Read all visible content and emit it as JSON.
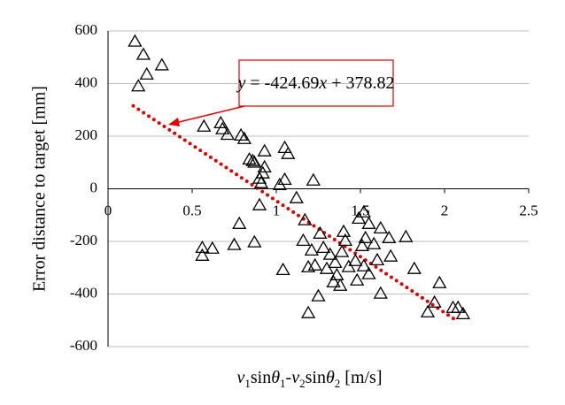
{
  "chart_data": {
    "type": "scatter",
    "y_label": "Error distance to target [mm]",
    "x_label": [
      {
        "text": "v",
        "style": "italic"
      },
      {
        "text": "1",
        "style": "sub"
      },
      {
        "text": "sin",
        "style": "normal"
      },
      {
        "text": "θ",
        "style": "italic"
      },
      {
        "text": "1",
        "style": "sub"
      },
      {
        "text": "-",
        "style": "normal"
      },
      {
        "text": "v",
        "style": "italic"
      },
      {
        "text": "2",
        "style": "sub"
      },
      {
        "text": "sin",
        "style": "normal"
      },
      {
        "text": "θ",
        "style": "italic"
      },
      {
        "text": "2",
        "style": "sub"
      },
      {
        "text": " [m/s]",
        "style": "normal"
      }
    ],
    "xlim": [
      0,
      2.5
    ],
    "xticks": [
      0,
      0.5,
      1,
      1.5,
      2,
      2.5
    ],
    "ylim": [
      -600,
      600
    ],
    "yticks": [
      -600,
      -400,
      -200,
      0,
      200,
      400,
      600
    ],
    "grid": true,
    "marker": "triangle",
    "color": "#000000",
    "x": [
      0.16,
      0.21,
      0.23,
      0.32,
      0.18,
      0.57,
      0.67,
      0.68,
      0.71,
      0.79,
      0.81,
      0.84,
      0.86,
      0.87,
      0.93,
      0.93,
      0.92,
      0.9,
      0.91,
      0.9,
      1.05,
      1.07,
      1.02,
      1.05,
      1.12,
      1.22,
      1.17,
      0.78,
      0.56,
      0.62,
      0.56,
      0.75,
      0.87,
      1.04,
      1.16,
      1.21,
      1.26,
      1.28,
      1.23,
      1.19,
      1.3,
      1.32,
      1.39,
      1.41,
      1.4,
      1.43,
      1.47,
      1.51,
      1.53,
      1.49,
      1.52,
      1.55,
      1.58,
      1.62,
      1.6,
      1.52,
      1.55,
      1.48,
      1.35,
      1.36,
      1.34,
      1.38,
      1.25,
      1.19,
      1.67,
      1.62,
      1.68,
      1.77,
      1.82,
      1.97,
      1.94,
      1.9,
      2.05,
      2.08,
      2.11
    ],
    "y": [
      560,
      510,
      435,
      470,
      390,
      237,
      250,
      227,
      206,
      203,
      190,
      112,
      106,
      100,
      143,
      82,
      59,
      39,
      22,
      -62,
      156,
      133,
      15,
      35,
      -35,
      32,
      -119,
      -133,
      -224,
      -227,
      -254,
      -213,
      -203,
      -308,
      -197,
      -234,
      -170,
      -224,
      -291,
      -298,
      -304,
      -250,
      -240,
      -197,
      -163,
      -297,
      -274,
      -217,
      -187,
      -113,
      -89,
      -133,
      -210,
      -150,
      -271,
      -294,
      -324,
      -348,
      -281,
      -328,
      -355,
      -368,
      -408,
      -472,
      -187,
      -398,
      -257,
      -183,
      -304,
      -358,
      -432,
      -469,
      -452,
      -452,
      -476
    ],
    "trendline": {
      "slope": -424.69,
      "intercept": 378.82,
      "x_range": [
        0.15,
        2.08
      ],
      "color": "#e00000",
      "label": [
        {
          "text": "y",
          "style": "italic"
        },
        {
          "text": " = -424.69",
          "style": "normal"
        },
        {
          "text": "x",
          "style": "italic"
        },
        {
          "text": " + 378.82",
          "style": "normal"
        }
      ]
    }
  }
}
